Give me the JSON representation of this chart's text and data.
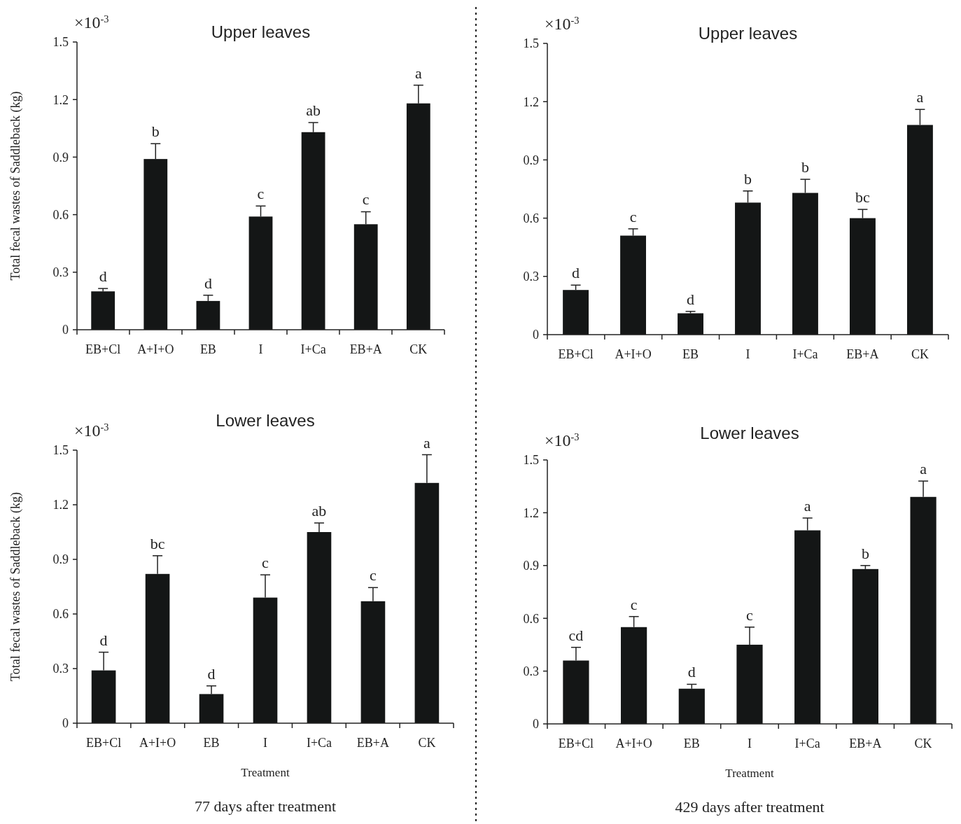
{
  "chart_data": [
    {
      "type": "bar",
      "title": "Upper leaves",
      "ylabel": "Total fecal wastes of Saddleback (kg)",
      "categories": [
        "EB+Cl",
        "A+I+O",
        "EB",
        "I",
        "I+Ca",
        "EB+A",
        "CK"
      ],
      "series": [
        {
          "color": "#141616",
          "values": [
            0.2,
            0.89,
            0.15,
            0.59,
            1.03,
            0.55,
            1.18
          ],
          "errors": [
            0.015,
            0.08,
            0.03,
            0.055,
            0.05,
            0.065,
            0.095
          ]
        }
      ],
      "ylim": [
        0,
        1.5
      ],
      "yticks": [
        0,
        0.3,
        0.6,
        0.9,
        1.2,
        1.5
      ],
      "grid": false,
      "annotations": [
        "×10$^{-3}$",
        {
          "text": "d",
          "x": "EB+Cl",
          "y": 0.215
        },
        {
          "text": "b",
          "x": "A+I+O",
          "y": 0.97
        },
        {
          "text": "d",
          "x": "EB",
          "y": 0.18
        },
        {
          "text": "c",
          "x": "I",
          "y": 0.645
        },
        {
          "text": "ab",
          "x": "I+Ca",
          "y": 1.08
        },
        {
          "text": "c",
          "x": "EB+A",
          "y": 0.615
        },
        {
          "text": "a",
          "x": "CK",
          "y": 1.275
        }
      ]
    },
    {
      "type": "bar",
      "title": "Upper leaves",
      "categories": [
        "EB+Cl",
        "A+I+O",
        "EB",
        "I",
        "I+Ca",
        "EB+A",
        "CK"
      ],
      "series": [
        {
          "color": "#141616",
          "values": [
            0.23,
            0.51,
            0.11,
            0.68,
            0.73,
            0.6,
            1.08
          ],
          "errors": [
            0.025,
            0.035,
            0.01,
            0.06,
            0.07,
            0.045,
            0.08
          ]
        }
      ],
      "ylim": [
        0,
        1.5
      ],
      "yticks": [
        0,
        0.3,
        0.6,
        0.9,
        1.2,
        1.5
      ],
      "grid": false,
      "annotations": [
        "×10$^{-3}$",
        {
          "text": "d",
          "x": "EB+Cl",
          "y": 0.255
        },
        {
          "text": "c",
          "x": "A+I+O",
          "y": 0.545
        },
        {
          "text": "d",
          "x": "EB",
          "y": 0.12
        },
        {
          "text": "b",
          "x": "I",
          "y": 0.74
        },
        {
          "text": "b",
          "x": "I+Ca",
          "y": 0.8
        },
        {
          "text": "bc",
          "x": "EB+A",
          "y": 0.645
        },
        {
          "text": "a",
          "x": "CK",
          "y": 1.16
        }
      ]
    },
    {
      "type": "bar",
      "title": "Lower leaves",
      "ylabel": "Total fecal wastes of Saddleback (kg)",
      "xlabel": "Treatment",
      "categories": [
        "EB+Cl",
        "A+I+O",
        "EB",
        "I",
        "I+Ca",
        "EB+A",
        "CK"
      ],
      "series": [
        {
          "color": "#141616",
          "values": [
            0.29,
            0.82,
            0.16,
            0.69,
            1.05,
            0.67,
            1.32
          ],
          "errors": [
            0.1,
            0.1,
            0.045,
            0.125,
            0.05,
            0.075,
            0.155
          ]
        }
      ],
      "ylim": [
        0,
        1.5
      ],
      "yticks": [
        0,
        0.3,
        0.6,
        0.9,
        1.2,
        1.5
      ],
      "grid": false,
      "annotations": [
        "×10$^{-3}$",
        "77  days after treatment",
        {
          "text": "d",
          "x": "EB+Cl",
          "y": 0.39
        },
        {
          "text": "bc",
          "x": "A+I+O",
          "y": 0.92
        },
        {
          "text": "d",
          "x": "EB",
          "y": 0.205
        },
        {
          "text": "c",
          "x": "I",
          "y": 0.815
        },
        {
          "text": "ab",
          "x": "I+Ca",
          "y": 1.1
        },
        {
          "text": "c",
          "x": "EB+A",
          "y": 0.745
        },
        {
          "text": "a",
          "x": "CK",
          "y": 1.475
        }
      ]
    },
    {
      "type": "bar",
      "title": "Lower leaves",
      "xlabel": "Treatment",
      "categories": [
        "EB+Cl",
        "A+I+O",
        "EB",
        "I",
        "I+Ca",
        "EB+A",
        "CK"
      ],
      "series": [
        {
          "color": "#141616",
          "values": [
            0.36,
            0.55,
            0.2,
            0.45,
            1.1,
            0.88,
            1.29
          ],
          "errors": [
            0.075,
            0.06,
            0.025,
            0.1,
            0.07,
            0.02,
            0.09
          ]
        }
      ],
      "ylim": [
        0,
        1.5
      ],
      "yticks": [
        0,
        0.3,
        0.6,
        0.9,
        1.2,
        1.5
      ],
      "grid": false,
      "annotations": [
        "×10$^{-3}$",
        "429  days after treatment",
        {
          "text": "cd",
          "x": "EB+Cl",
          "y": 0.435
        },
        {
          "text": "c",
          "x": "A+I+O",
          "y": 0.61
        },
        {
          "text": "d",
          "x": "EB",
          "y": 0.225
        },
        {
          "text": "c",
          "x": "I",
          "y": 0.55
        },
        {
          "text": "a",
          "x": "I+Ca",
          "y": 1.17
        },
        {
          "text": "b",
          "x": "EB+A",
          "y": 0.9
        },
        {
          "text": "a",
          "x": "CK",
          "y": 1.38
        }
      ]
    }
  ]
}
